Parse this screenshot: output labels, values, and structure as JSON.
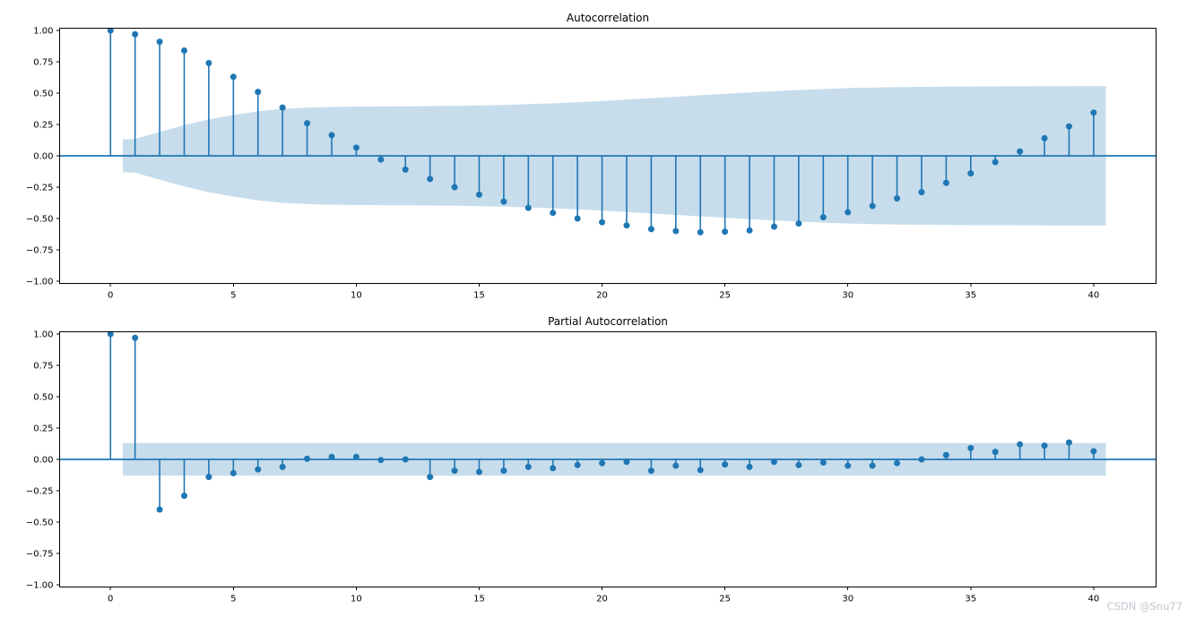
{
  "figure": {
    "watermark": "CSDN @Snu77",
    "watermark_color": "#c1c5cf",
    "background": "#ffffff"
  },
  "colors": {
    "stem": "#1f77b4",
    "marker": "#1f77b4",
    "zero_line": "#1f77b4",
    "confidence_band": "#c7ddec",
    "spine": "#000000",
    "tick_label": "#000000",
    "title": "#000000"
  },
  "chart_data": [
    {
      "type": "stem",
      "title": "Autocorrelation",
      "xlabel": "",
      "ylabel": "",
      "grid": false,
      "legend": "none",
      "xlim": [
        -2.07,
        42.54
      ],
      "ylim": [
        -1.018,
        1.018
      ],
      "xticks": [
        0,
        5,
        10,
        15,
        20,
        25,
        30,
        35,
        40
      ],
      "xtick_labels": [
        "0",
        "5",
        "10",
        "15",
        "20",
        "25",
        "30",
        "35",
        "40"
      ],
      "yticks": [
        1.0,
        0.75,
        0.5,
        0.25,
        0.0,
        -0.25,
        -0.5,
        -0.75,
        -1.0
      ],
      "ytick_labels": [
        "1.00",
        "0.75",
        "0.50",
        "0.25",
        "0.00",
        "−0.25",
        "−0.50",
        "−0.75",
        "−1.00"
      ],
      "x": [
        0,
        1,
        2,
        3,
        4,
        5,
        6,
        7,
        8,
        9,
        10,
        11,
        12,
        13,
        14,
        15,
        16,
        17,
        18,
        19,
        20,
        21,
        22,
        23,
        24,
        25,
        26,
        27,
        28,
        29,
        30,
        31,
        32,
        33,
        34,
        35,
        36,
        37,
        38,
        39,
        40
      ],
      "values": [
        1.0,
        0.97,
        0.91,
        0.84,
        0.74,
        0.63,
        0.51,
        0.385,
        0.26,
        0.165,
        0.065,
        -0.03,
        -0.11,
        -0.185,
        -0.25,
        -0.31,
        -0.365,
        -0.415,
        -0.455,
        -0.5,
        -0.53,
        -0.555,
        -0.585,
        -0.6,
        -0.61,
        -0.605,
        -0.595,
        -0.565,
        -0.54,
        -0.49,
        -0.45,
        -0.4,
        -0.34,
        -0.29,
        -0.215,
        -0.14,
        -0.05,
        0.035,
        0.14,
        0.235,
        0.345
      ],
      "conf_band": {
        "x": [
          0.5,
          1,
          2,
          3,
          4,
          5,
          6,
          7,
          8,
          9,
          10,
          12,
          14,
          16,
          18,
          20,
          22,
          24,
          26,
          28,
          30,
          32,
          34,
          36,
          38,
          40,
          40.5
        ],
        "upper": [
          0.13,
          0.135,
          0.19,
          0.245,
          0.29,
          0.325,
          0.355,
          0.375,
          0.385,
          0.39,
          0.393,
          0.395,
          0.398,
          0.405,
          0.419,
          0.437,
          0.46,
          0.483,
          0.505,
          0.525,
          0.54,
          0.548,
          0.552,
          0.554,
          0.555,
          0.556,
          0.556
        ],
        "symmetric": true
      }
    },
    {
      "type": "stem",
      "title": "Partial Autocorrelation",
      "xlabel": "",
      "ylabel": "",
      "grid": false,
      "legend": "none",
      "xlim": [
        -2.07,
        42.54
      ],
      "ylim": [
        -1.018,
        1.018
      ],
      "xticks": [
        0,
        5,
        10,
        15,
        20,
        25,
        30,
        35,
        40
      ],
      "xtick_labels": [
        "0",
        "5",
        "10",
        "15",
        "20",
        "25",
        "30",
        "35",
        "40"
      ],
      "yticks": [
        1.0,
        0.75,
        0.5,
        0.25,
        0.0,
        -0.25,
        -0.5,
        -0.75,
        -1.0
      ],
      "ytick_labels": [
        "1.00",
        "0.75",
        "0.50",
        "0.25",
        "0.00",
        "−0.25",
        "−0.50",
        "−0.75",
        "−1.00"
      ],
      "x": [
        0,
        1,
        2,
        3,
        4,
        5,
        6,
        7,
        8,
        9,
        10,
        11,
        12,
        13,
        14,
        15,
        16,
        17,
        18,
        19,
        20,
        21,
        22,
        23,
        24,
        25,
        26,
        27,
        28,
        29,
        30,
        31,
        32,
        33,
        34,
        35,
        36,
        37,
        38,
        39,
        40
      ],
      "values": [
        1.0,
        0.97,
        -0.4,
        -0.29,
        -0.14,
        -0.11,
        -0.08,
        -0.06,
        0.005,
        0.02,
        0.02,
        -0.005,
        0.0,
        -0.14,
        -0.09,
        -0.1,
        -0.09,
        -0.06,
        -0.07,
        -0.045,
        -0.03,
        -0.02,
        -0.09,
        -0.05,
        -0.085,
        -0.04,
        -0.06,
        -0.02,
        -0.045,
        -0.025,
        -0.05,
        -0.05,
        -0.03,
        0.0,
        0.035,
        0.09,
        0.06,
        0.12,
        0.11,
        0.135,
        0.065
      ],
      "conf_band": {
        "x": [
          0.5,
          40.5
        ],
        "upper": [
          0.13,
          0.13
        ],
        "symmetric": true
      }
    }
  ]
}
